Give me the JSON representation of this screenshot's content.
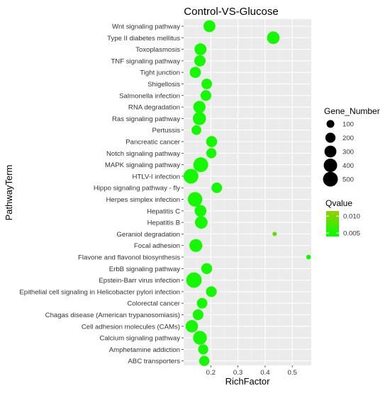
{
  "chart_data": {
    "type": "scatter",
    "title": "Control-VS-Glucose",
    "xlabel": "RichFactor",
    "ylabel": "PathwayTerm",
    "xlim": [
      0.1,
      0.57
    ],
    "x_ticks": [
      0.2,
      0.3,
      0.4,
      0.5
    ],
    "x_tick_labels": [
      "0.2",
      "0.3",
      "0.4",
      "0.5"
    ],
    "grid": true,
    "panel_color": "#ebebeb",
    "legend_position": "right",
    "size_legend": {
      "title": "Gene_Number",
      "values": [
        100,
        200,
        300,
        400,
        500
      ],
      "labels": [
        "100",
        "200",
        "300",
        "400",
        "500"
      ]
    },
    "color_legend": {
      "title": "Qvalue",
      "range": [
        0.004,
        0.0115
      ],
      "tick_values": [
        0.005,
        0.01
      ],
      "tick_labels": [
        "0.005",
        "0.010"
      ],
      "low_color": "#00ff00",
      "high_color": "#99cc00"
    },
    "points": [
      {
        "term": "Wnt signaling pathway",
        "x": 0.195,
        "size": 300,
        "q": 0.005
      },
      {
        "term": "Type II diabetes mellitus",
        "x": 0.43,
        "size": 340,
        "q": 0.005
      },
      {
        "term": "Toxoplasmosis",
        "x": 0.162,
        "size": 300,
        "q": 0.005
      },
      {
        "term": "TNF signaling pathway",
        "x": 0.16,
        "size": 260,
        "q": 0.005
      },
      {
        "term": "Tight junction",
        "x": 0.143,
        "size": 250,
        "q": 0.005
      },
      {
        "term": "Shigellosis",
        "x": 0.185,
        "size": 220,
        "q": 0.005
      },
      {
        "term": "Salmonella infection",
        "x": 0.182,
        "size": 230,
        "q": 0.005
      },
      {
        "term": "RNA degradation",
        "x": 0.158,
        "size": 320,
        "q": 0.005
      },
      {
        "term": "Ras signaling pathway",
        "x": 0.158,
        "size": 380,
        "q": 0.005
      },
      {
        "term": "Pertussis",
        "x": 0.147,
        "size": 180,
        "q": 0.005
      },
      {
        "term": "Pancreatic cancer",
        "x": 0.203,
        "size": 250,
        "q": 0.005
      },
      {
        "term": "Notch signaling pathway",
        "x": 0.202,
        "size": 200,
        "q": 0.005
      },
      {
        "term": "MAPK signaling pathway",
        "x": 0.163,
        "size": 500,
        "q": 0.005
      },
      {
        "term": "HTLV-I infection",
        "x": 0.127,
        "size": 500,
        "q": 0.005
      },
      {
        "term": "Hippo signaling pathway - fly",
        "x": 0.222,
        "size": 220,
        "q": 0.005
      },
      {
        "term": "Herpes simplex infection",
        "x": 0.142,
        "size": 480,
        "q": 0.005
      },
      {
        "term": "Hepatitis C",
        "x": 0.162,
        "size": 290,
        "q": 0.005
      },
      {
        "term": "Hepatitis B",
        "x": 0.165,
        "size": 340,
        "q": 0.005
      },
      {
        "term": "Geraniol degradation",
        "x": 0.435,
        "size": 15,
        "q": 0.009
      },
      {
        "term": "Focal adhesion",
        "x": 0.145,
        "size": 360,
        "q": 0.005
      },
      {
        "term": "Flavone and flavonol biosynthesis",
        "x": 0.56,
        "size": 20,
        "q": 0.005
      },
      {
        "term": "ErbB signaling pathway",
        "x": 0.185,
        "size": 240,
        "q": 0.005
      },
      {
        "term": "Epstein-Barr virus infection",
        "x": 0.138,
        "size": 550,
        "q": 0.005
      },
      {
        "term": "Epithelial cell signaling in Helicobacter pylori infection",
        "x": 0.202,
        "size": 230,
        "q": 0.005
      },
      {
        "term": "Colorectal cancer",
        "x": 0.168,
        "size": 220,
        "q": 0.005
      },
      {
        "term": "Chagas disease (American trypanosomiasis)",
        "x": 0.153,
        "size": 230,
        "q": 0.005
      },
      {
        "term": "Cell adhesion molecules (CAMs)",
        "x": 0.13,
        "size": 330,
        "q": 0.005
      },
      {
        "term": "Calcium signaling pathway",
        "x": 0.16,
        "size": 420,
        "q": 0.005
      },
      {
        "term": "Amphetamine addiction",
        "x": 0.172,
        "size": 200,
        "q": 0.005
      },
      {
        "term": "ABC transporters",
        "x": 0.176,
        "size": 200,
        "q": 0.005
      }
    ]
  }
}
